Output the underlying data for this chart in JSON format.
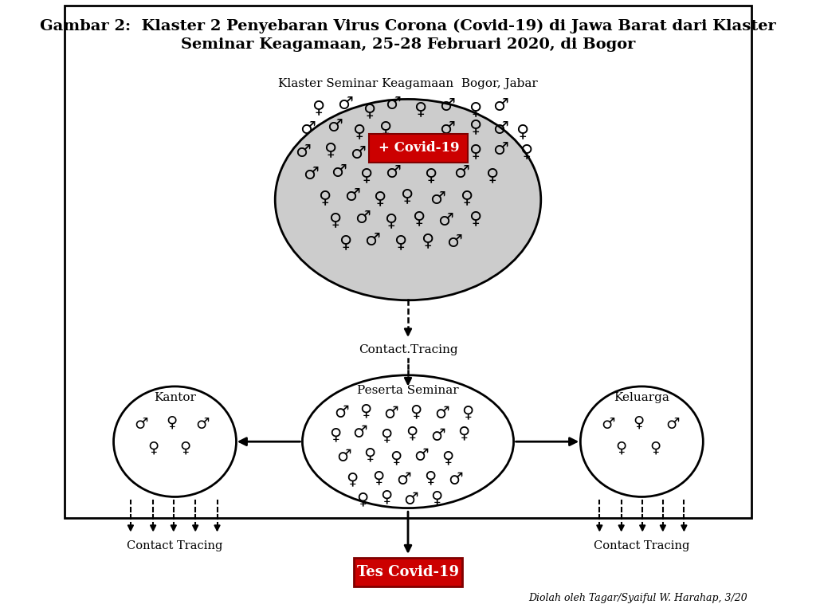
{
  "title_line1": "Gambar 2:  Klaster 2 Penyebaran Virus Corona (Covid-19) di Jawa Barat dari Klaster",
  "title_line2": "Seminar Keagamaan, 25-28 Februari 2020, di Bogor",
  "top_ellipse_label": "Klaster Seminar Keagamaan  Bogor, Jabar",
  "top_covid_box": "+ Covid-19",
  "middle_label": "Contact.Tracing",
  "middle_ellipse_label": "Peserta Seminar",
  "left_ellipse_label": "Kantor",
  "right_ellipse_label": "Keluarga",
  "left_contact": "Contact Tracing",
  "right_contact": "Contact Tracing",
  "bottom_box": "Tes Covid-19",
  "footer": "Diolah oleh Tagar/Syaiful W. Harahap, 3/20",
  "bg_color": "#ffffff",
  "red_color": "#cc0000",
  "male_symbol": "♂",
  "female_symbol": "♀"
}
